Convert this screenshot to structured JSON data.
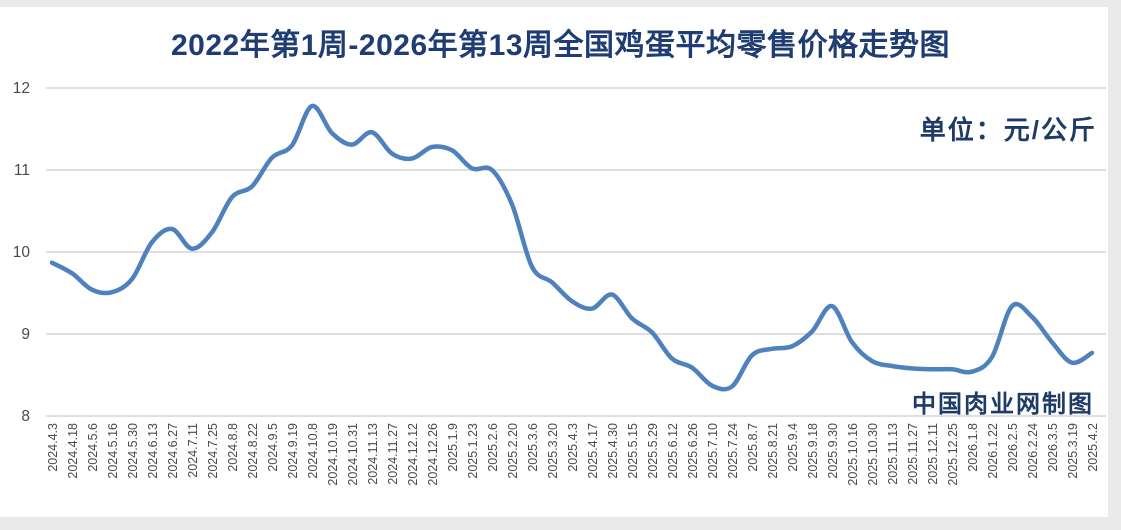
{
  "header": {
    "title": "2022年第1周-2026年第13周全国鸡蛋平均零售价格走势图",
    "unit_label": "单位：元/公斤",
    "credit": "中国肉业网制图"
  },
  "colors": {
    "line": "#4F81BD",
    "grid": "#CCCCCC",
    "axis_text": "#4A4A4A",
    "title_text": "#1F3D73",
    "accent_text": "#1E3A66",
    "frame_strip": "#EAEAEA"
  },
  "chart_data": {
    "type": "line",
    "title": "2022年第1周-2026年第13周全国鸡蛋平均零售价格走势图",
    "xlabel": "",
    "ylabel": "元/公斤",
    "unit": "元/公斤",
    "ylim": [
      8,
      12
    ],
    "yticks": [
      12,
      11,
      10,
      9,
      8
    ],
    "grid": true,
    "legend_position": "none",
    "categories": [
      "2024.4.3",
      "2024.4.18",
      "2024.5.6",
      "2024.5.16",
      "2024.5.30",
      "2024.6.13",
      "2024.6.27",
      "2024.7.11",
      "2024.7.25",
      "2024.8.8",
      "2024.8.22",
      "2024.9.5",
      "2024.9.19",
      "2024.10.8",
      "2024.10.19",
      "2024.10.31",
      "2024.11.13",
      "2024.11.27",
      "2024.12.12",
      "2024.12.26",
      "2025.1.9",
      "2025.1.23",
      "2025.2.6",
      "2025.2.20",
      "2025.3.6",
      "2025.3.20",
      "2025.4.3",
      "2025.4.17",
      "2025.4.30",
      "2025.5.15",
      "2025.5.29",
      "2025.6.12",
      "2025.6.26",
      "2025.7.10",
      "2025.7.24",
      "2025.8.7",
      "2025.8.21",
      "2025.9.4",
      "2025.9.18",
      "2025.9.30",
      "2025.10.16",
      "2025.10.30",
      "2025.11.13",
      "2025.11.27",
      "2025.12.11",
      "2025.12.25",
      "2026.1.8",
      "2026.1.22",
      "2026.2.5",
      "2026.2.24",
      "2026.3.5",
      "2025.3.19",
      "2025.4.2"
    ],
    "series": [
      {
        "name": "全国鸡蛋平均零售价格",
        "values": [
          9.87,
          9.74,
          9.54,
          9.51,
          9.67,
          10.12,
          10.28,
          10.04,
          10.24,
          10.67,
          10.8,
          11.15,
          11.3,
          11.78,
          11.45,
          11.31,
          11.46,
          11.2,
          11.14,
          11.28,
          11.24,
          11.02,
          11.0,
          10.58,
          9.82,
          9.63,
          9.4,
          9.31,
          9.48,
          9.19,
          9.02,
          8.7,
          8.59,
          8.37,
          8.36,
          8.74,
          8.82,
          8.85,
          9.03,
          9.34,
          8.9,
          8.67,
          8.61,
          8.58,
          8.57,
          8.57,
          8.54,
          8.72,
          9.34,
          9.21,
          8.9,
          8.65,
          8.77
        ]
      }
    ]
  }
}
